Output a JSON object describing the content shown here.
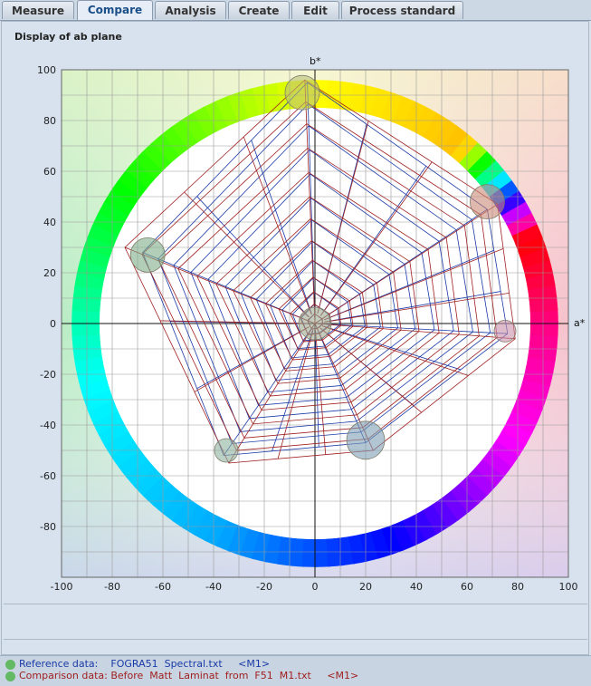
{
  "tabs": [
    {
      "label": "Measure",
      "active": false
    },
    {
      "label": "Compare",
      "active": true
    },
    {
      "label": "Analysis",
      "active": false
    },
    {
      "label": "Create",
      "active": false
    },
    {
      "label": "Edit",
      "active": false
    },
    {
      "label": "Process standard",
      "active": false
    }
  ],
  "panel": {
    "title": "Display of ab plane"
  },
  "chart_data": {
    "type": "scatter",
    "xlabel": "a*",
    "ylabel": "b*",
    "xlim": [
      -100,
      100
    ],
    "ylim": [
      -100,
      100
    ],
    "xticks": [
      "-100",
      "-80",
      "-60",
      "-40",
      "-20",
      "0",
      "20",
      "40",
      "60",
      "80",
      "100"
    ],
    "yticks": [
      "100",
      "80",
      "60",
      "40",
      "20",
      "0",
      "-20",
      "-40",
      "-60",
      "-80"
    ],
    "grid": true,
    "series": [
      {
        "name": "Reference data",
        "color": "#1a3aa8",
        "polygon": [
          [
            -3,
            95
          ],
          [
            68,
            45
          ],
          [
            76,
            -4
          ],
          [
            20,
            -47
          ],
          [
            -36,
            -52
          ],
          [
            -68,
            28
          ]
        ]
      },
      {
        "name": "Comparison data",
        "color": "#a02020",
        "polygon": [
          [
            -4,
            96
          ],
          [
            72,
            47
          ],
          [
            79,
            -6
          ],
          [
            23,
            -50
          ],
          [
            -34,
            -55
          ],
          [
            -75,
            30
          ]
        ]
      }
    ],
    "highlight_points": [
      {
        "a": -5,
        "b": 91,
        "color": "#b9c07a"
      },
      {
        "a": 68,
        "b": 48,
        "color": "#c98878"
      },
      {
        "a": 75,
        "b": -3,
        "color": "#c98faa"
      },
      {
        "a": 20,
        "b": -46,
        "color": "#7f9fb4"
      },
      {
        "a": -35,
        "b": -50,
        "color": "#8fb3a0"
      },
      {
        "a": -66,
        "b": 27,
        "color": "#7fae88"
      },
      {
        "a": 0,
        "b": 0,
        "color": "#9faa90"
      }
    ]
  },
  "legend": {
    "reference": {
      "label": "Reference data:",
      "file": "FOGRA51  Spectral.txt",
      "tag": "<M1>",
      "color": "#1a3aa8"
    },
    "comparison": {
      "label": "Comparison data:",
      "file": "Before  Matt  Laminat  from  F51  M1.txt",
      "tag": "<M1>",
      "color": "#a02020"
    }
  }
}
